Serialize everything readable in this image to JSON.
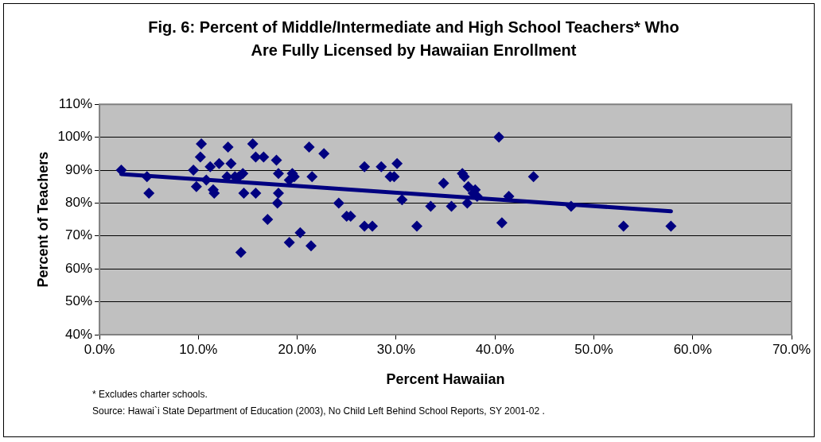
{
  "chart_data": {
    "type": "scatter",
    "title": "Fig. 6: Percent of Middle/Intermediate and High School Teachers* Who Are Fully Licensed by Hawaiian Enrollment",
    "xlabel": "Percent Hawaiian",
    "ylabel": "Percent of Teachers",
    "x": [
      2.2,
      4.8,
      5.0,
      9.5,
      9.8,
      10.2,
      10.3,
      10.8,
      11.2,
      11.5,
      11.6,
      12.1,
      12.9,
      13.0,
      13.3,
      13.7,
      14.1,
      14.5,
      14.6,
      14.3,
      15.5,
      15.8,
      15.8,
      16.6,
      17.0,
      17.9,
      18.1,
      18.1,
      18.0,
      19.2,
      19.2,
      19.5,
      19.7,
      20.3,
      21.2,
      21.5,
      21.4,
      22.7,
      24.2,
      25.0,
      25.4,
      26.8,
      26.8,
      27.6,
      28.5,
      29.4,
      29.8,
      30.1,
      30.6,
      32.1,
      33.5,
      34.8,
      35.6,
      36.7,
      36.9,
      37.2,
      37.3,
      37.8,
      38.0,
      38.2,
      40.4,
      40.7,
      41.4,
      43.9,
      47.7,
      53.0,
      57.8
    ],
    "series": [
      {
        "color": "#000080",
        "values": [
          90,
          88,
          83,
          90,
          85,
          94,
          98,
          87,
          91,
          84,
          83,
          92,
          88,
          97,
          92,
          88,
          88,
          89,
          83,
          65,
          98,
          94,
          83,
          94,
          75,
          93,
          89,
          83,
          80,
          68,
          87,
          89,
          88,
          71,
          97,
          88,
          67,
          95,
          80,
          76,
          76,
          91,
          73,
          73,
          91,
          88,
          88,
          92,
          81,
          73,
          79,
          86,
          79,
          89,
          88,
          80,
          85,
          83,
          84,
          82,
          100,
          74,
          82,
          88,
          79,
          73,
          73
        ]
      },
      {
        "type": "line",
        "color": "#000080",
        "x": [
          2.2,
          57.8
        ],
        "values": [
          88.8,
          77.5
        ],
        "marker": "none"
      }
    ],
    "xlim": [
      0,
      70
    ],
    "xticks": [
      {
        "value": 0,
        "label": "0.0%"
      },
      {
        "value": 10,
        "label": "10.0%"
      },
      {
        "value": 20,
        "label": "20.0%"
      },
      {
        "value": 30,
        "label": "30.0%"
      },
      {
        "value": 40,
        "label": "40.0%"
      },
      {
        "value": 50,
        "label": "50.0%"
      },
      {
        "value": 60,
        "label": "60.0%"
      },
      {
        "value": 70,
        "label": "70.0%"
      }
    ],
    "ylim": [
      40,
      110
    ],
    "yticks": [
      {
        "value": 40,
        "label": "40%"
      },
      {
        "value": 50,
        "label": "50%"
      },
      {
        "value": 60,
        "label": "60%"
      },
      {
        "value": 70,
        "label": "70%"
      },
      {
        "value": 80,
        "label": "80%"
      },
      {
        "value": 90,
        "label": "90%"
      },
      {
        "value": 100,
        "label": "100%"
      },
      {
        "value": 110,
        "label": "110%"
      }
    ],
    "grid": "y",
    "legend": false,
    "marker": "diamond",
    "annotations": [
      "* Excludes charter schools.",
      "Source: Hawai`i State Department of Education (2003), No Child Left Behind School Reports, SY 2001-02 ."
    ]
  }
}
